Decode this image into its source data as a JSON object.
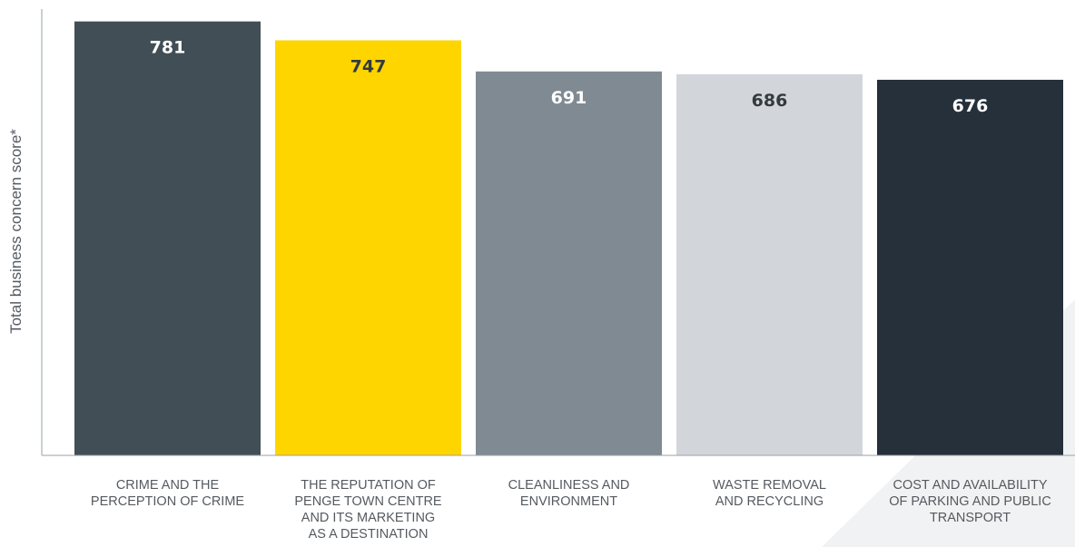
{
  "chart_data": {
    "type": "bar",
    "title": "",
    "xlabel": "",
    "ylabel": "Total business concern score*",
    "ylim": [
      0,
      800
    ],
    "grid": false,
    "categories": [
      [
        "CRIME AND THE",
        "PERCEPTION OF CRIME"
      ],
      [
        "THE REPUTATION OF",
        "PENGE TOWN CENTRE",
        "AND ITS MARKETING",
        "AS A DESTINATION"
      ],
      [
        "CLEANLINESS AND",
        "ENVIRONMENT"
      ],
      [
        "WASTE REMOVAL",
        "AND RECYCLING"
      ],
      [
        "COST AND AVAILABILITY",
        "OF PARKING AND PUBLIC",
        "TRANSPORT"
      ]
    ],
    "values": [
      781,
      747,
      691,
      686,
      676
    ],
    "data_labels": [
      "781",
      "747",
      "691",
      "686",
      "676"
    ],
    "colors": [
      "#414e55",
      "#ffd500",
      "#808a92",
      "#d2d6da",
      "#25303a"
    ],
    "label_colors": [
      "#ffffff",
      "#333a40",
      "#ffffff",
      "#333a40",
      "#ffffff"
    ],
    "background_shape_color": "#f1f2f3"
  }
}
